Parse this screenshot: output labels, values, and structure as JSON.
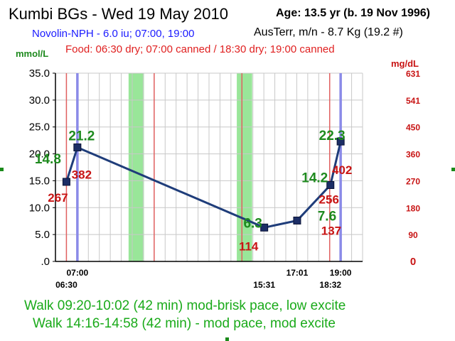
{
  "header": {
    "title": "Kumbi BGs - Wed 19 May 2010",
    "age": "Age: 13.5  yr (b. 19 Nov 1996)",
    "insulin": "Novolin-NPH - 6.0 iu; 07:00, 19:00",
    "meta": "AusTerr, m/n - 8.7 Kg (19.2 #)",
    "food": "Food: 06:30 dry; 07:00 canned / 18:30 dry; 19:00 canned"
  },
  "footer": {
    "walk1": "Walk 09:20-10:02 (42 min) mod-brisk pace, low excite",
    "walk2": "Walk 14:16-14:58 (42 min) - mod pace, mod excite"
  },
  "colors": {
    "line": "#1f3d7a",
    "marker": "#1c2e66",
    "mmol_label": "#1e8a1e",
    "mgdl_label": "#c81414",
    "food_line": "#e06060",
    "insulin_line": "#8a8ae8",
    "walk_band": "#99e699",
    "grid": "#c8c8c8"
  },
  "chart_data": {
    "type": "line",
    "title": "Kumbi BGs - Wed 19 May 2010",
    "ylabel": "mmol/L",
    "ylabel_right": "mg/dL",
    "ylim": [
      0,
      35
    ],
    "y_ticks": [
      ".0",
      "5.0",
      "10.0",
      "15.0",
      "20.0",
      "25.0",
      "30.0",
      "35.0"
    ],
    "y_tick_values": [
      0,
      5,
      10,
      15,
      20,
      25,
      30,
      35
    ],
    "right_ticks": [
      "0",
      "90",
      "180",
      "270",
      "360",
      "450",
      "541",
      "631"
    ],
    "xlim": [
      "06:00",
      "20:00"
    ],
    "grid": true,
    "series": [
      {
        "x": [
          "06:30",
          "07:00",
          "15:31",
          "17:01",
          "18:32",
          "19:00"
        ],
        "values": [
          14.8,
          21.2,
          6.3,
          7.6,
          14.2,
          22.3
        ],
        "mmol_labels": [
          "14.8",
          "21.2",
          "6.3",
          "7.6",
          "14.2",
          "22.3"
        ],
        "mgdl_labels": [
          "267",
          "382",
          "114",
          "137",
          "256",
          "402"
        ]
      }
    ],
    "x_labels": [
      {
        "text": "07:00",
        "time": "07:00",
        "row": 1
      },
      {
        "text": "06:30",
        "time": "06:30",
        "row": 2
      },
      {
        "text": "15:31",
        "time": "15:31",
        "row": 2
      },
      {
        "text": "17:01",
        "time": "17:01",
        "row": 1
      },
      {
        "text": "19:00",
        "time": "19:00",
        "row": 1
      },
      {
        "text": "18:32",
        "time": "18:32",
        "row": 2
      }
    ],
    "walk_bands": [
      [
        "09:20",
        "10:02"
      ],
      [
        "14:16",
        "14:58"
      ]
    ],
    "food_times": [
      "06:30",
      "07:00",
      "10:30",
      "14:30",
      "18:30"
    ],
    "insulin_times": [
      "07:00",
      "19:00"
    ]
  }
}
